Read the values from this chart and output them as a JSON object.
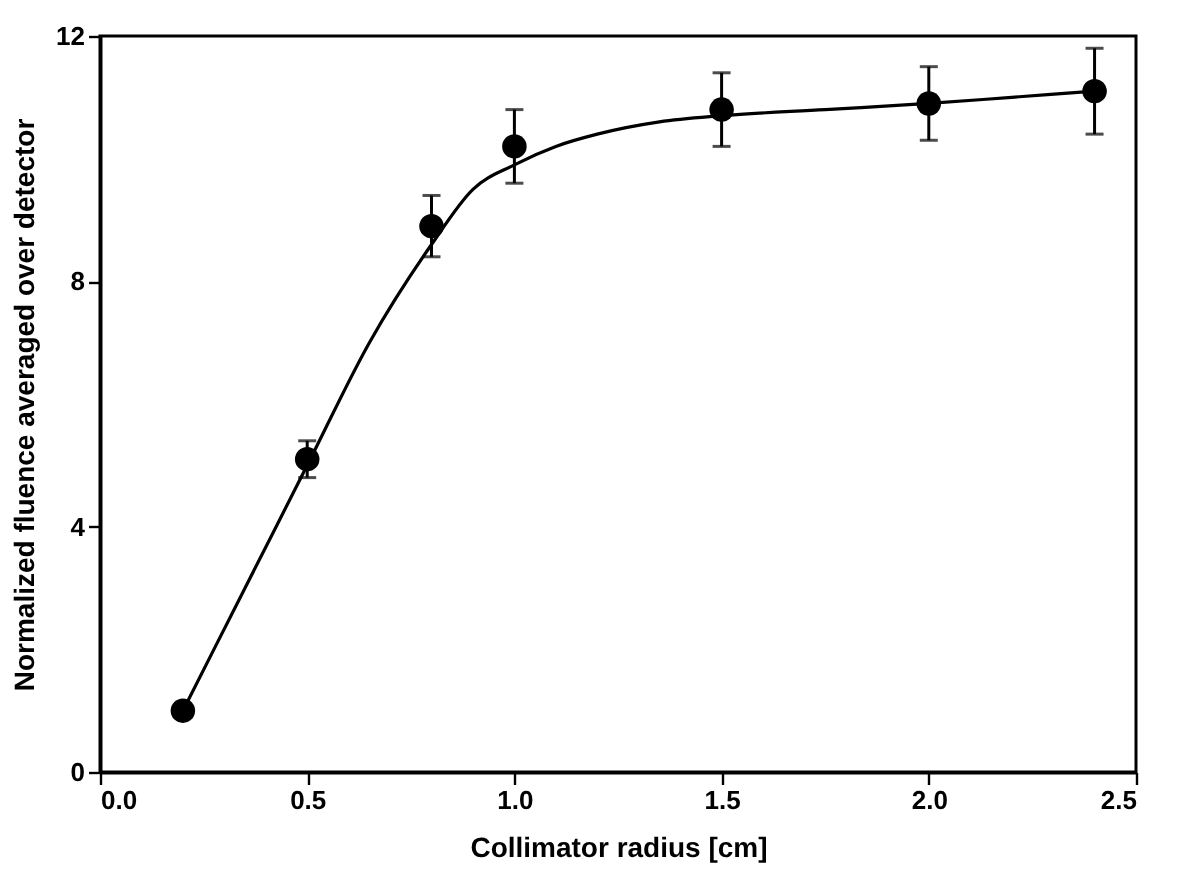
{
  "chart_data": {
    "type": "scatter",
    "xlabel": "Collimator radius [cm]",
    "ylabel": "Normalized fluence averaged over detector",
    "xlim": [
      0,
      2.5
    ],
    "ylim": [
      0,
      12
    ],
    "xticks": [
      {
        "value": 0,
        "label": "0.0"
      },
      {
        "value": 0.5,
        "label": "0.5"
      },
      {
        "value": 1,
        "label": "1.0"
      },
      {
        "value": 1.5,
        "label": "1.5"
      },
      {
        "value": 2,
        "label": "2.0"
      },
      {
        "value": 2.5,
        "label": "2.5"
      }
    ],
    "yticks": [
      0,
      4,
      8,
      12
    ],
    "series": [
      {
        "color": "#000000",
        "marker": "circle",
        "x": [
          0.2,
          0.5,
          0.8,
          1.0,
          1.5,
          2.0,
          2.4
        ],
        "values": [
          1.0,
          5.1,
          8.9,
          10.2,
          10.8,
          10.9,
          11.1
        ],
        "errors": [
          null,
          0.3,
          0.5,
          0.6,
          0.6,
          0.6,
          0.7
        ]
      },
      {
        "type": "line",
        "color": "#000000",
        "marker": "none",
        "line_style": "solid",
        "x": [
          0.2,
          0.35,
          0.5,
          0.65,
          0.8,
          0.9,
          1.0,
          1.1,
          1.2,
          1.35,
          1.5,
          1.75,
          2.0,
          2.2,
          2.4
        ],
        "values": [
          1.0,
          3.0,
          5.0,
          7.0,
          8.6,
          9.5,
          9.9,
          10.2,
          10.4,
          10.6,
          10.7,
          10.8,
          10.9,
          11.0,
          11.1
        ]
      }
    ]
  }
}
